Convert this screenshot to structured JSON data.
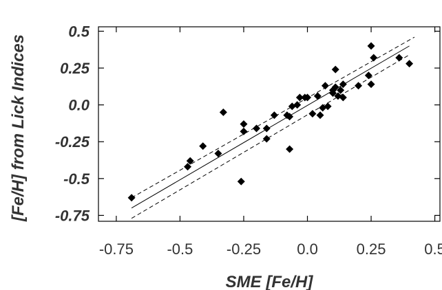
{
  "chart_data": {
    "type": "scatter",
    "xlabel": "SME [Fe/H]",
    "ylabel": "[Fe/H] from Lick Indices",
    "xlim": [
      -0.82,
      0.52
    ],
    "ylim": [
      -0.79,
      0.53
    ],
    "x_ticks": [
      {
        "value": -0.75,
        "label": "-0.75"
      },
      {
        "value": -0.5,
        "label": "-0.5"
      },
      {
        "value": -0.25,
        "label": "-0.25"
      },
      {
        "value": 0.0,
        "label": "0.0"
      },
      {
        "value": 0.25,
        "label": "0.25"
      },
      {
        "value": 0.5,
        "label": "0.5"
      }
    ],
    "y_ticks": [
      {
        "value": 0.5,
        "label": "0.5"
      },
      {
        "value": 0.25,
        "label": "0.25"
      },
      {
        "value": 0.0,
        "label": "0.0"
      },
      {
        "value": -0.25,
        "label": "-0.25"
      },
      {
        "value": -0.5,
        "label": "-0.5"
      },
      {
        "value": -0.75,
        "label": "-0.75"
      }
    ],
    "fit_line": {
      "x": [
        -0.69,
        0.4
      ],
      "y": [
        -0.7,
        0.4
      ]
    },
    "upper_band": {
      "x": [
        -0.69,
        0.42
      ],
      "y": [
        -0.63,
        0.46
      ]
    },
    "lower_band": {
      "x": [
        -0.69,
        0.4
      ],
      "y": [
        -0.77,
        0.34
      ]
    },
    "points": [
      {
        "x": -0.69,
        "y": -0.63
      },
      {
        "x": -0.47,
        "y": -0.42
      },
      {
        "x": -0.46,
        "y": -0.38
      },
      {
        "x": -0.41,
        "y": -0.28
      },
      {
        "x": -0.35,
        "y": -0.33
      },
      {
        "x": -0.33,
        "y": -0.05
      },
      {
        "x": -0.26,
        "y": -0.52
      },
      {
        "x": -0.25,
        "y": -0.13
      },
      {
        "x": -0.25,
        "y": -0.18
      },
      {
        "x": -0.2,
        "y": -0.16
      },
      {
        "x": -0.16,
        "y": -0.23
      },
      {
        "x": -0.16,
        "y": -0.16
      },
      {
        "x": -0.13,
        "y": -0.07
      },
      {
        "x": -0.08,
        "y": -0.07
      },
      {
        "x": -0.07,
        "y": -0.3
      },
      {
        "x": -0.07,
        "y": -0.08
      },
      {
        "x": -0.06,
        "y": -0.01
      },
      {
        "x": -0.04,
        "y": 0.0
      },
      {
        "x": -0.03,
        "y": 0.05
      },
      {
        "x": -0.01,
        "y": 0.05
      },
      {
        "x": 0.0,
        "y": 0.05
      },
      {
        "x": 0.02,
        "y": -0.06
      },
      {
        "x": 0.04,
        "y": 0.06
      },
      {
        "x": 0.05,
        "y": -0.07
      },
      {
        "x": 0.06,
        "y": -0.02
      },
      {
        "x": 0.07,
        "y": 0.13
      },
      {
        "x": 0.08,
        "y": -0.01
      },
      {
        "x": 0.1,
        "y": 0.1
      },
      {
        "x": 0.1,
        "y": 0.08
      },
      {
        "x": 0.11,
        "y": 0.24
      },
      {
        "x": 0.11,
        "y": 0.12
      },
      {
        "x": 0.12,
        "y": 0.06
      },
      {
        "x": 0.13,
        "y": 0.1
      },
      {
        "x": 0.14,
        "y": 0.14
      },
      {
        "x": 0.14,
        "y": 0.05
      },
      {
        "x": 0.2,
        "y": 0.13
      },
      {
        "x": 0.24,
        "y": 0.2
      },
      {
        "x": 0.25,
        "y": 0.14
      },
      {
        "x": 0.25,
        "y": 0.4
      },
      {
        "x": 0.26,
        "y": 0.32
      },
      {
        "x": 0.36,
        "y": 0.32
      },
      {
        "x": 0.4,
        "y": 0.28
      }
    ],
    "marker": "diamond",
    "grid": false,
    "colors": {
      "marker": "#000000",
      "axes": "#000000",
      "text": "#333333",
      "background": "#ffffff"
    }
  }
}
